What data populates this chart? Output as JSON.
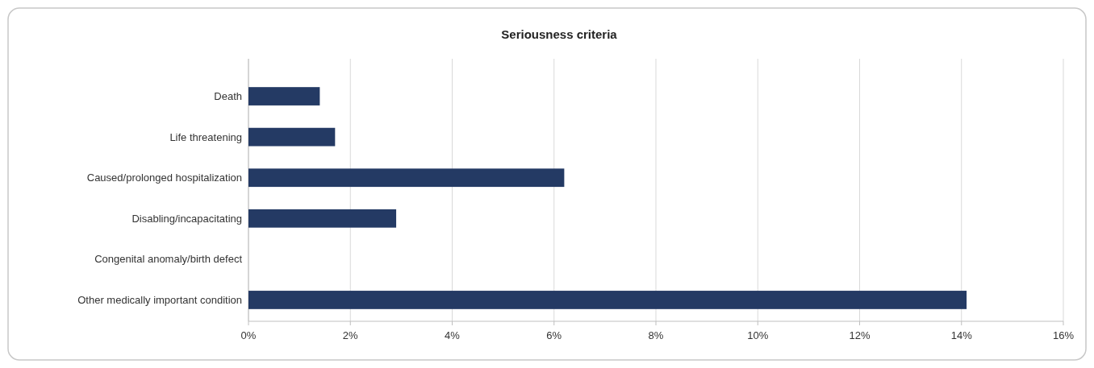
{
  "chart_data": {
    "type": "bar",
    "orientation": "horizontal",
    "title": "Seriousness criteria",
    "categories": [
      "Death",
      "Life threatening",
      "Caused/prolonged hospitalization",
      "Disabling/incapacitating",
      "Congenital anomaly/birth defect",
      "Other medically important condition"
    ],
    "values": [
      1.4,
      1.7,
      6.2,
      2.9,
      0,
      14.1
    ],
    "color": "#243a64",
    "xlim": [
      0,
      16
    ],
    "xticks": [
      {
        "value": 0,
        "label": "0%"
      },
      {
        "value": 2,
        "label": "2%"
      },
      {
        "value": 4,
        "label": "4%"
      },
      {
        "value": 6,
        "label": "6%"
      },
      {
        "value": 8,
        "label": "8%"
      },
      {
        "value": 10,
        "label": "10%"
      },
      {
        "value": 12,
        "label": "12%"
      },
      {
        "value": 14,
        "label": "14%"
      },
      {
        "value": 16,
        "label": "16%"
      }
    ],
    "grid": "x"
  }
}
